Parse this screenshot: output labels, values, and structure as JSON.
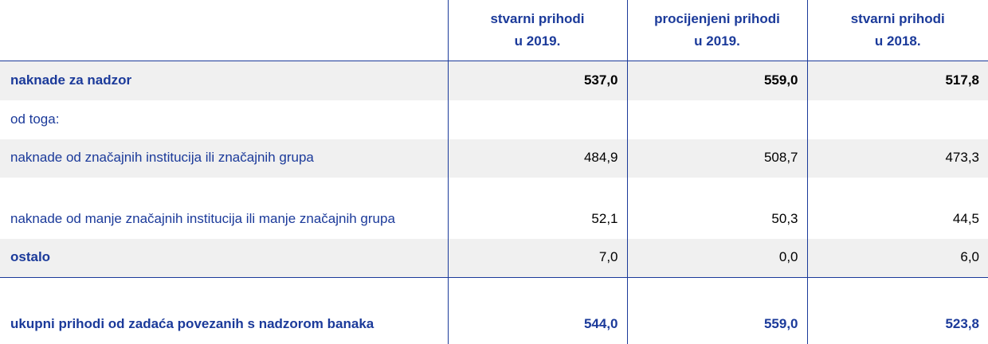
{
  "table": {
    "header": [
      {
        "lines": [
          "stvarni prihodi",
          "u 2019."
        ]
      },
      {
        "lines": [
          "procijenjeni prihodi",
          "u 2019."
        ]
      },
      {
        "lines": [
          "stvarni prihodi",
          "u 2018."
        ]
      }
    ],
    "rows": [
      {
        "label": "naknade za nadzor",
        "values": [
          "537,0",
          "559,0",
          "517,8"
        ]
      },
      {
        "label": "od toga:",
        "values": []
      },
      {
        "label": "naknade od značajnih institucija ili značajnih grupa",
        "values": [
          "484,9",
          "508,7",
          "473,3"
        ]
      },
      {
        "label": "naknade od manje značajnih institucija ili manje značajnih grupa",
        "values": [
          "52,1",
          "50,3",
          "44,5"
        ]
      },
      {
        "label": "ostalo",
        "values": [
          "7,0",
          "0,0",
          "6,0"
        ]
      },
      {
        "label": "ukupni prihodi od zadaća povezanih s nadzorom banaka",
        "values": [
          "544,0",
          "559,0",
          "523,8"
        ]
      }
    ]
  }
}
